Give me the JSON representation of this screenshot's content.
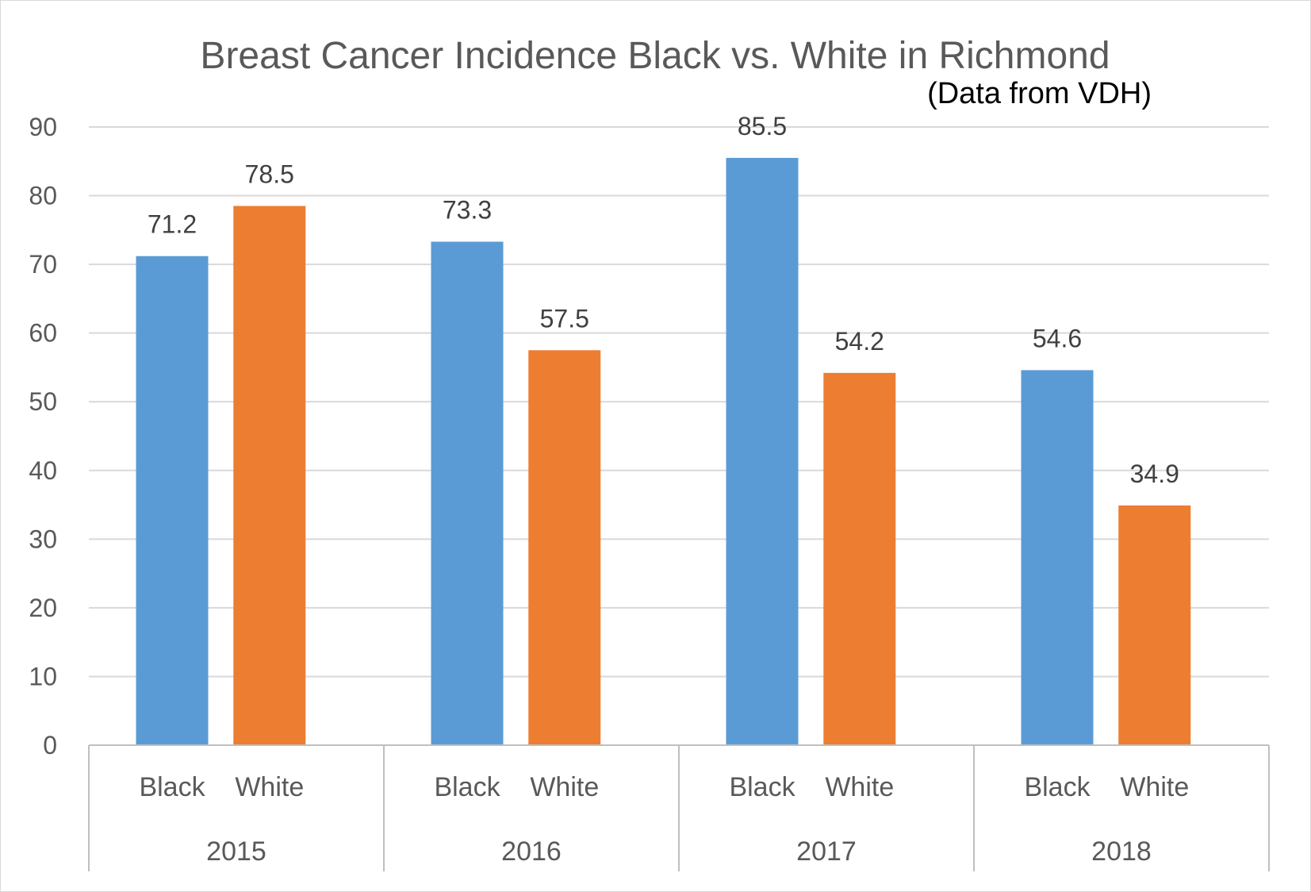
{
  "chart_data": {
    "type": "bar",
    "title": "Breast Cancer Incidence Black vs. White in Richmond",
    "subtitle": "(Data from VDH)",
    "groups": [
      "2015",
      "2016",
      "2017",
      "2018"
    ],
    "series": [
      {
        "name": "Black",
        "color": "#5B9BD5",
        "values": [
          71.2,
          73.3,
          85.5,
          54.6
        ]
      },
      {
        "name": "White",
        "color": "#ED7D31",
        "values": [
          78.5,
          57.5,
          54.2,
          34.9
        ]
      }
    ],
    "data_labels": {
      "Black": [
        "71.2",
        "73.3",
        "85.5",
        "54.6"
      ],
      "White": [
        "78.5",
        "57.5",
        "54.2",
        "34.9"
      ]
    },
    "yticks": [
      "0",
      "10",
      "20",
      "30",
      "40",
      "50",
      "60",
      "70",
      "80",
      "90"
    ],
    "ylim": [
      0,
      90
    ],
    "grid": true,
    "legend": "none"
  }
}
